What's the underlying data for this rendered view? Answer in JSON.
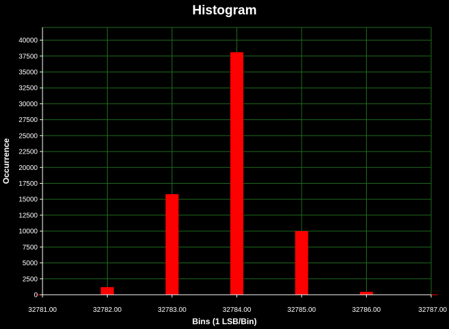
{
  "chart_data": {
    "type": "bar",
    "title": "Histogram",
    "xlabel": "Bins (1 LSB/Bin)",
    "ylabel": "Occurrence",
    "x_ticks": [
      "32781.00",
      "32782.00",
      "32783.00",
      "32784.00",
      "32785.00",
      "32786.00",
      "32787.00"
    ],
    "xlim": [
      32781,
      32787
    ],
    "ylim": [
      0,
      42000
    ],
    "y_ticks": [
      0,
      2500,
      5000,
      7500,
      10000,
      12500,
      15000,
      17500,
      20000,
      22500,
      25000,
      27500,
      30000,
      32500,
      35000,
      37500,
      40000
    ],
    "grid": true,
    "colors": {
      "background": "#000000",
      "grid": "#1f6b1f",
      "bar": "#ff0000",
      "text": "#ffffff"
    },
    "series": [
      {
        "x": [
          32781,
          32782,
          32783,
          32784,
          32785,
          32786,
          32787
        ],
        "values": [
          50,
          1200,
          15800,
          38100,
          10000,
          450,
          50
        ]
      }
    ]
  }
}
